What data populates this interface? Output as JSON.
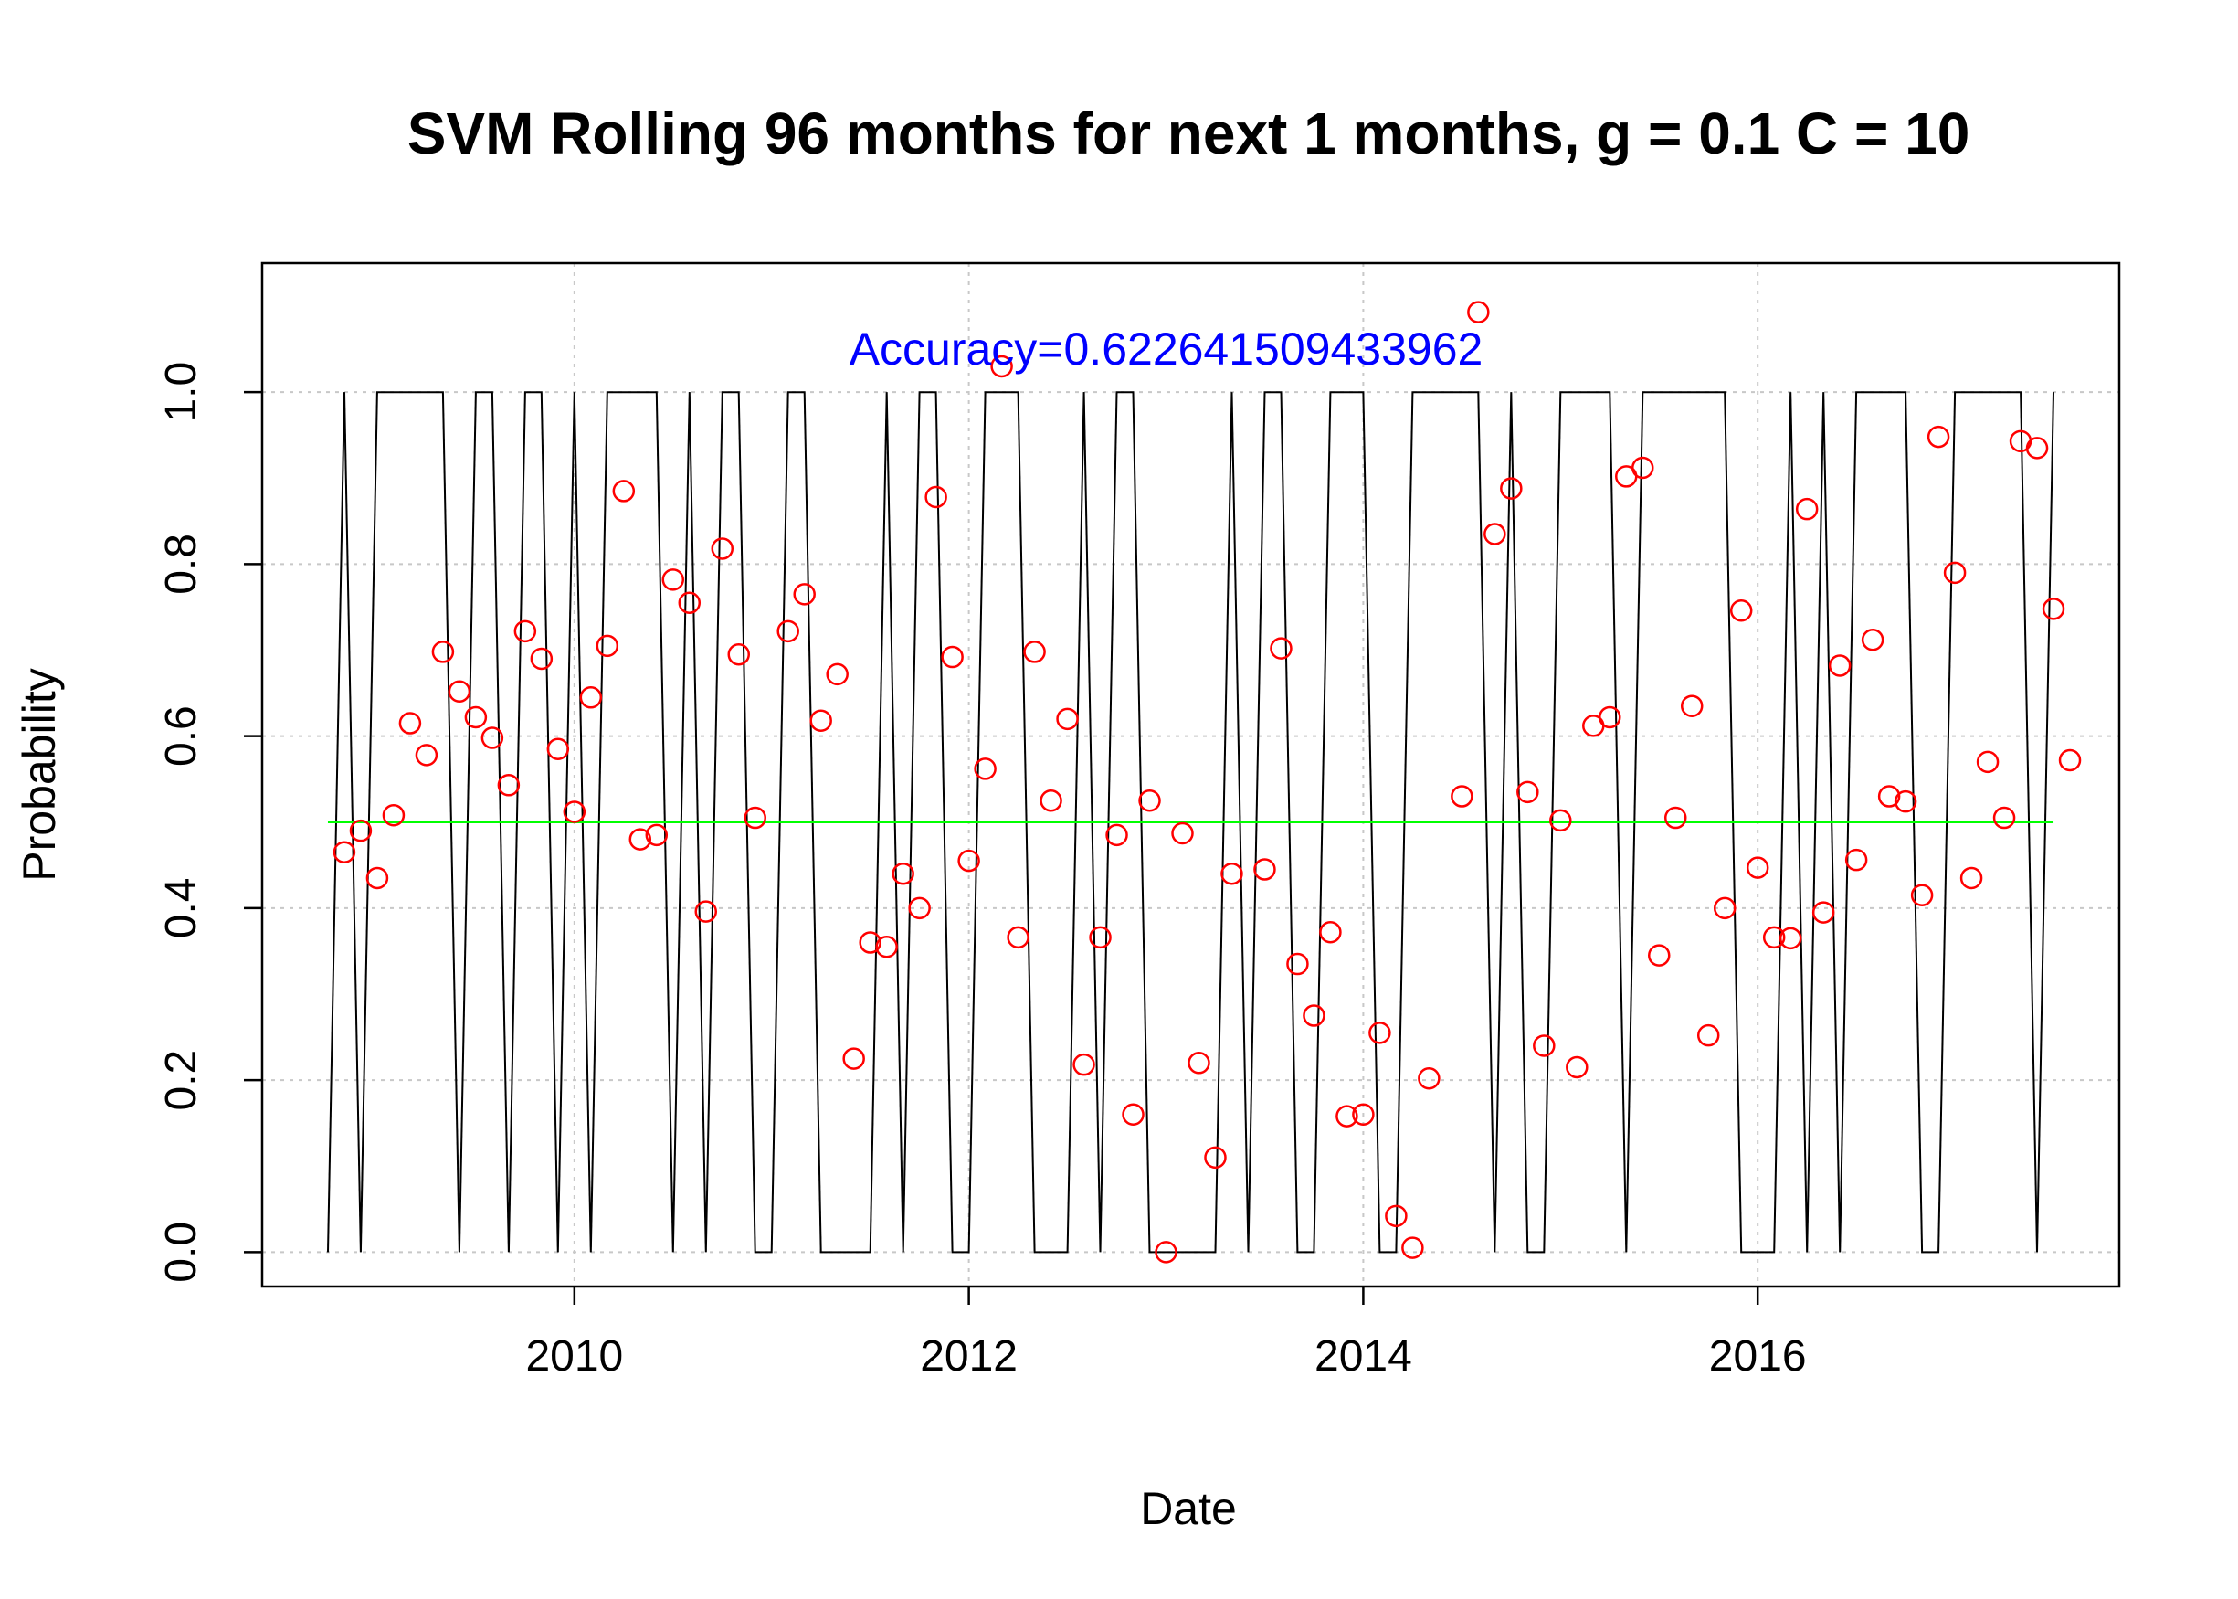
{
  "chart_data": {
    "type": "scatter",
    "title": "SVM Rolling 96 months for next 1 months, g =  0.1 C =  10",
    "xlabel": "Date",
    "ylabel": "Probability",
    "xlim": [
      "2008-06",
      "2017-11"
    ],
    "ylim": [
      -0.04,
      1.15
    ],
    "x_ticks": [
      "2010",
      "2012",
      "2014",
      "2016"
    ],
    "y_ticks": [
      "0.0",
      "0.2",
      "0.4",
      "0.6",
      "0.8",
      "1.0"
    ],
    "grid": true,
    "grid_style": "dotted",
    "annotation": {
      "text": "Accuracy=0.622641509433962",
      "color": "#0000ff",
      "x": "2013-01",
      "y": 1.05
    },
    "threshold_line": {
      "y": 0.5,
      "x_start": "2008-10",
      "x_end": "2017-07",
      "color": "#00ff00"
    },
    "months": [
      "2008-10",
      "2008-11",
      "2008-12",
      "2009-01",
      "2009-02",
      "2009-03",
      "2009-04",
      "2009-05",
      "2009-06",
      "2009-07",
      "2009-08",
      "2009-09",
      "2009-10",
      "2009-11",
      "2009-12",
      "2010-01",
      "2010-02",
      "2010-03",
      "2010-04",
      "2010-05",
      "2010-06",
      "2010-07",
      "2010-08",
      "2010-09",
      "2010-10",
      "2010-11",
      "2010-12",
      "2011-01",
      "2011-02",
      "2011-03",
      "2011-04",
      "2011-05",
      "2011-06",
      "2011-07",
      "2011-08",
      "2011-09",
      "2011-10",
      "2011-11",
      "2011-12",
      "2012-01",
      "2012-02",
      "2012-03",
      "2012-04",
      "2012-05",
      "2012-06",
      "2012-07",
      "2012-08",
      "2012-09",
      "2012-10",
      "2012-11",
      "2012-12",
      "2013-01",
      "2013-02",
      "2013-03",
      "2013-04",
      "2013-05",
      "2013-06",
      "2013-07",
      "2013-08",
      "2013-09",
      "2013-10",
      "2013-11",
      "2013-12",
      "2014-01",
      "2014-02",
      "2014-03",
      "2014-04",
      "2014-05",
      "2014-06",
      "2014-07",
      "2014-08",
      "2014-09",
      "2014-10",
      "2014-11",
      "2014-12",
      "2015-01",
      "2015-02",
      "2015-03",
      "2015-04",
      "2015-05",
      "2015-06",
      "2015-07",
      "2015-08",
      "2015-09",
      "2015-10",
      "2015-11",
      "2015-12",
      "2016-01",
      "2016-02",
      "2016-03",
      "2016-04",
      "2016-05",
      "2016-06",
      "2016-07",
      "2016-08",
      "2016-09",
      "2016-10",
      "2016-11",
      "2016-12",
      "2017-01",
      "2017-02",
      "2017-03",
      "2017-04",
      "2017-05",
      "2017-06",
      "2017-07"
    ],
    "series": [
      {
        "color": "#ff0000",
        "marker": "circle",
        "points": [
          {
            "x": "2008-11",
            "y": 0.465
          },
          {
            "x": "2008-12",
            "y": 0.49
          },
          {
            "x": "2009-01",
            "y": 0.435
          },
          {
            "x": "2009-02",
            "y": 0.508
          },
          {
            "x": "2009-03",
            "y": 0.615
          },
          {
            "x": "2009-04",
            "y": 0.578
          },
          {
            "x": "2009-05",
            "y": 0.698
          },
          {
            "x": "2009-06",
            "y": 0.652
          },
          {
            "x": "2009-07",
            "y": 0.622
          },
          {
            "x": "2009-08",
            "y": 0.598
          },
          {
            "x": "2009-09",
            "y": 0.543
          },
          {
            "x": "2009-10",
            "y": 0.722
          },
          {
            "x": "2009-11",
            "y": 0.69
          },
          {
            "x": "2009-12",
            "y": 0.585
          },
          {
            "x": "2010-01",
            "y": 0.512
          },
          {
            "x": "2010-02",
            "y": 0.645
          },
          {
            "x": "2010-03",
            "y": 0.705
          },
          {
            "x": "2010-04",
            "y": 0.885
          },
          {
            "x": "2010-05",
            "y": 0.48
          },
          {
            "x": "2010-06",
            "y": 0.485
          },
          {
            "x": "2010-07",
            "y": 0.782
          },
          {
            "x": "2010-08",
            "y": 0.755
          },
          {
            "x": "2010-09",
            "y": 0.396
          },
          {
            "x": "2010-10",
            "y": 0.818
          },
          {
            "x": "2010-11",
            "y": 0.695
          },
          {
            "x": "2010-12",
            "y": 0.505
          },
          {
            "x": "2011-02",
            "y": 0.722
          },
          {
            "x": "2011-03",
            "y": 0.765
          },
          {
            "x": "2011-04",
            "y": 0.618
          },
          {
            "x": "2011-05",
            "y": 0.672
          },
          {
            "x": "2011-06",
            "y": 0.225
          },
          {
            "x": "2011-07",
            "y": 0.36
          },
          {
            "x": "2011-08",
            "y": 0.355
          },
          {
            "x": "2011-09",
            "y": 0.44
          },
          {
            "x": "2011-10",
            "y": 0.4
          },
          {
            "x": "2011-11",
            "y": 0.878
          },
          {
            "x": "2011-12",
            "y": 0.692
          },
          {
            "x": "2012-01",
            "y": 0.455
          },
          {
            "x": "2012-02",
            "y": 0.562
          },
          {
            "x": "2012-03",
            "y": 1.03
          },
          {
            "x": "2012-04",
            "y": 0.366
          },
          {
            "x": "2012-05",
            "y": 0.698
          },
          {
            "x": "2012-06",
            "y": 0.525
          },
          {
            "x": "2012-07",
            "y": 0.62
          },
          {
            "x": "2012-08",
            "y": 0.218
          },
          {
            "x": "2012-09",
            "y": 0.366
          },
          {
            "x": "2012-10",
            "y": 0.485
          },
          {
            "x": "2012-11",
            "y": 0.16
          },
          {
            "x": "2012-12",
            "y": 0.525
          },
          {
            "x": "2013-01",
            "y": 0.0
          },
          {
            "x": "2013-02",
            "y": 0.487
          },
          {
            "x": "2013-03",
            "y": 0.22
          },
          {
            "x": "2013-04",
            "y": 0.11
          },
          {
            "x": "2013-05",
            "y": 0.44
          },
          {
            "x": "2013-07",
            "y": 0.445
          },
          {
            "x": "2013-08",
            "y": 0.702
          },
          {
            "x": "2013-09",
            "y": 0.335
          },
          {
            "x": "2013-10",
            "y": 0.275
          },
          {
            "x": "2013-11",
            "y": 0.372
          },
          {
            "x": "2013-12",
            "y": 0.158
          },
          {
            "x": "2014-01",
            "y": 0.16
          },
          {
            "x": "2014-02",
            "y": 0.255
          },
          {
            "x": "2014-03",
            "y": 0.042
          },
          {
            "x": "2014-04",
            "y": 0.005
          },
          {
            "x": "2014-05",
            "y": 0.202
          },
          {
            "x": "2014-07",
            "y": 0.53
          },
          {
            "x": "2014-08",
            "y": 1.093
          },
          {
            "x": "2014-09",
            "y": 0.835
          },
          {
            "x": "2014-10",
            "y": 0.888
          },
          {
            "x": "2014-11",
            "y": 0.535
          },
          {
            "x": "2014-12",
            "y": 0.24
          },
          {
            "x": "2015-01",
            "y": 0.502
          },
          {
            "x": "2015-02",
            "y": 0.215
          },
          {
            "x": "2015-03",
            "y": 0.612
          },
          {
            "x": "2015-04",
            "y": 0.622
          },
          {
            "x": "2015-05",
            "y": 0.902
          },
          {
            "x": "2015-06",
            "y": 0.912
          },
          {
            "x": "2015-07",
            "y": 0.345
          },
          {
            "x": "2015-08",
            "y": 0.505
          },
          {
            "x": "2015-09",
            "y": 0.635
          },
          {
            "x": "2015-10",
            "y": 0.252
          },
          {
            "x": "2015-11",
            "y": 0.4
          },
          {
            "x": "2015-12",
            "y": 0.746
          },
          {
            "x": "2016-01",
            "y": 0.447
          },
          {
            "x": "2016-02",
            "y": 0.366
          },
          {
            "x": "2016-03",
            "y": 0.365
          },
          {
            "x": "2016-04",
            "y": 0.864
          },
          {
            "x": "2016-05",
            "y": 0.395
          },
          {
            "x": "2016-06",
            "y": 0.682
          },
          {
            "x": "2016-07",
            "y": 0.456
          },
          {
            "x": "2016-08",
            "y": 0.712
          },
          {
            "x": "2016-09",
            "y": 0.53
          },
          {
            "x": "2016-10",
            "y": 0.524
          },
          {
            "x": "2016-11",
            "y": 0.415
          },
          {
            "x": "2016-12",
            "y": 0.948
          },
          {
            "x": "2017-01",
            "y": 0.79
          },
          {
            "x": "2017-02",
            "y": 0.435
          },
          {
            "x": "2017-03",
            "y": 0.57
          },
          {
            "x": "2017-04",
            "y": 0.505
          },
          {
            "x": "2017-05",
            "y": 0.943
          },
          {
            "x": "2017-06",
            "y": 0.935
          },
          {
            "x": "2017-07",
            "y": 0.748
          },
          {
            "x": "2017-08",
            "y": 0.572
          }
        ]
      },
      {
        "style": "solid-step",
        "color": "#000000",
        "values": [
          0,
          1,
          0,
          1,
          1,
          1,
          1,
          1,
          0,
          1,
          1,
          0,
          1,
          1,
          0,
          1,
          0,
          1,
          1,
          1,
          1,
          0,
          1,
          0,
          1,
          1,
          0,
          0,
          1,
          1,
          0,
          0,
          0,
          0,
          1,
          0,
          1,
          1,
          0,
          0,
          1,
          1,
          1,
          0,
          0,
          0,
          1,
          0,
          1,
          1,
          0,
          0,
          0,
          0,
          0,
          1,
          0,
          1,
          1,
          0,
          0,
          1,
          1,
          1,
          0,
          0,
          1,
          1,
          1,
          1,
          1,
          0,
          1,
          0,
          0,
          1,
          1,
          1,
          1,
          0,
          1,
          1,
          1,
          1,
          1,
          1,
          0,
          0,
          0,
          1,
          0,
          1,
          0,
          1,
          1,
          1,
          1,
          0,
          0,
          1,
          1,
          1,
          1,
          1,
          0,
          1
        ]
      },
      {
        "style": "dotted-step",
        "color": "#000000",
        "values": [
          0,
          1,
          0,
          1,
          1,
          1,
          1,
          1,
          0,
          1,
          1,
          0,
          1,
          1,
          0,
          1,
          0,
          1,
          1,
          1,
          1,
          0,
          1,
          0,
          1,
          1,
          0,
          0,
          1,
          1,
          0,
          0,
          0,
          0,
          1,
          0,
          1,
          1,
          0,
          0,
          1,
          1,
          1,
          0,
          0,
          0,
          1,
          0,
          1,
          1,
          0,
          0,
          0,
          0,
          0,
          1,
          0,
          1,
          1,
          0,
          0,
          1,
          1,
          1,
          0,
          0,
          1,
          1,
          1,
          1,
          1,
          0,
          1,
          0,
          0,
          1,
          1,
          1,
          1,
          0,
          1,
          1,
          1,
          1,
          1,
          1,
          0,
          0,
          0,
          1,
          0,
          1,
          0,
          1,
          1,
          1,
          1,
          0,
          0,
          1,
          1,
          1,
          1,
          1,
          0,
          1
        ]
      }
    ]
  }
}
